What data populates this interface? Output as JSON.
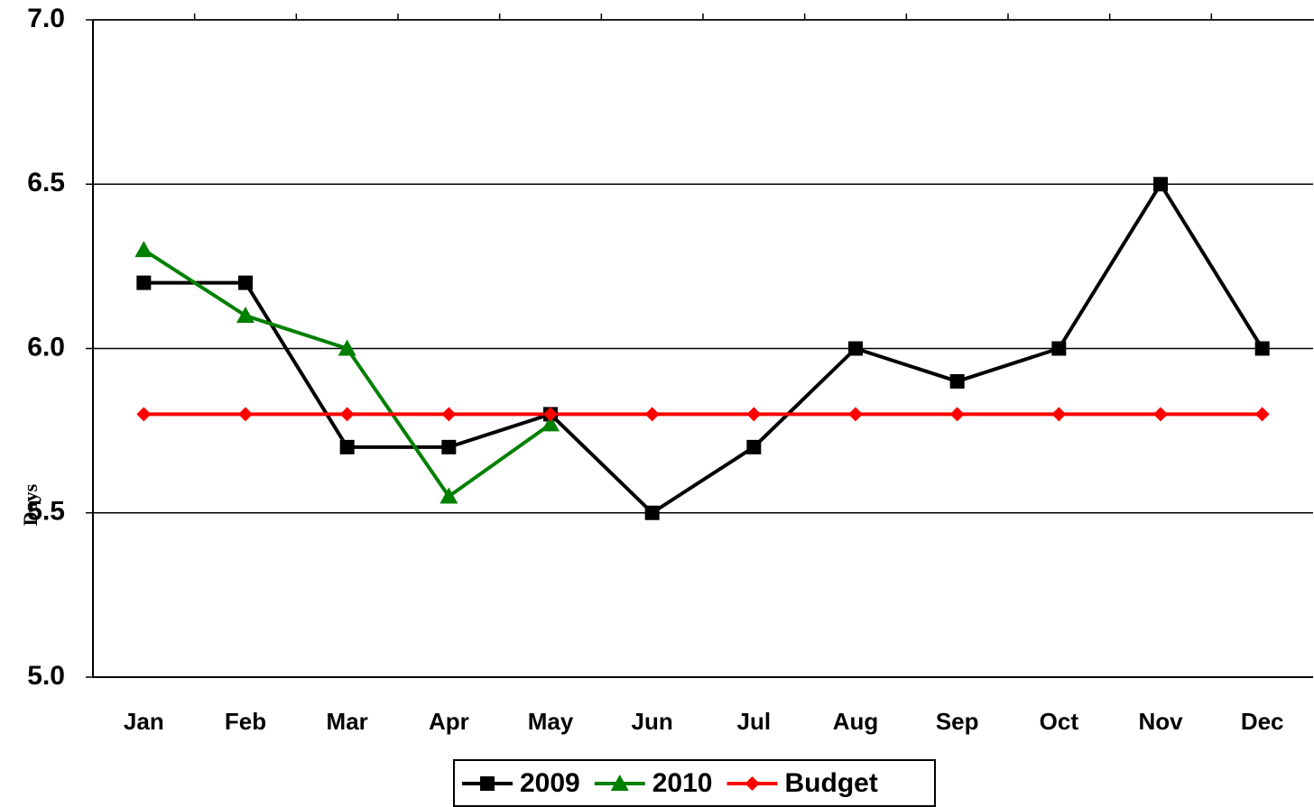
{
  "chart_data": {
    "type": "line",
    "y_label": "Days",
    "categories": [
      "Jan",
      "Feb",
      "Mar",
      "Apr",
      "May",
      "Jun",
      "Jul",
      "Aug",
      "Sep",
      "Oct",
      "Nov",
      "Dec"
    ],
    "series": [
      {
        "name": "2009",
        "color": "#000000",
        "marker": "square",
        "values": [
          6.2,
          6.2,
          5.7,
          5.7,
          5.8,
          5.5,
          5.7,
          6.0,
          5.9,
          6.0,
          6.5,
          6.0
        ]
      },
      {
        "name": "2010",
        "color": "#008000",
        "marker": "triangle",
        "values": [
          6.3,
          6.1,
          6.0,
          5.55,
          5.77,
          null,
          null,
          null,
          null,
          null,
          null,
          null
        ]
      },
      {
        "name": "Budget",
        "color": "#ff0000",
        "marker": "diamond",
        "values": [
          5.8,
          5.8,
          5.8,
          5.8,
          5.8,
          5.8,
          5.8,
          5.8,
          5.8,
          5.8,
          5.8,
          5.8
        ]
      }
    ],
    "ylim": [
      5,
      7
    ],
    "yticks": [
      {
        "value": 5,
        "label": "5.0"
      },
      5.5,
      {
        "value": 6,
        "label": "6.0"
      },
      6.5,
      {
        "value": 7,
        "label": "7.0"
      }
    ],
    "grid": true,
    "legend": "bottom"
  }
}
